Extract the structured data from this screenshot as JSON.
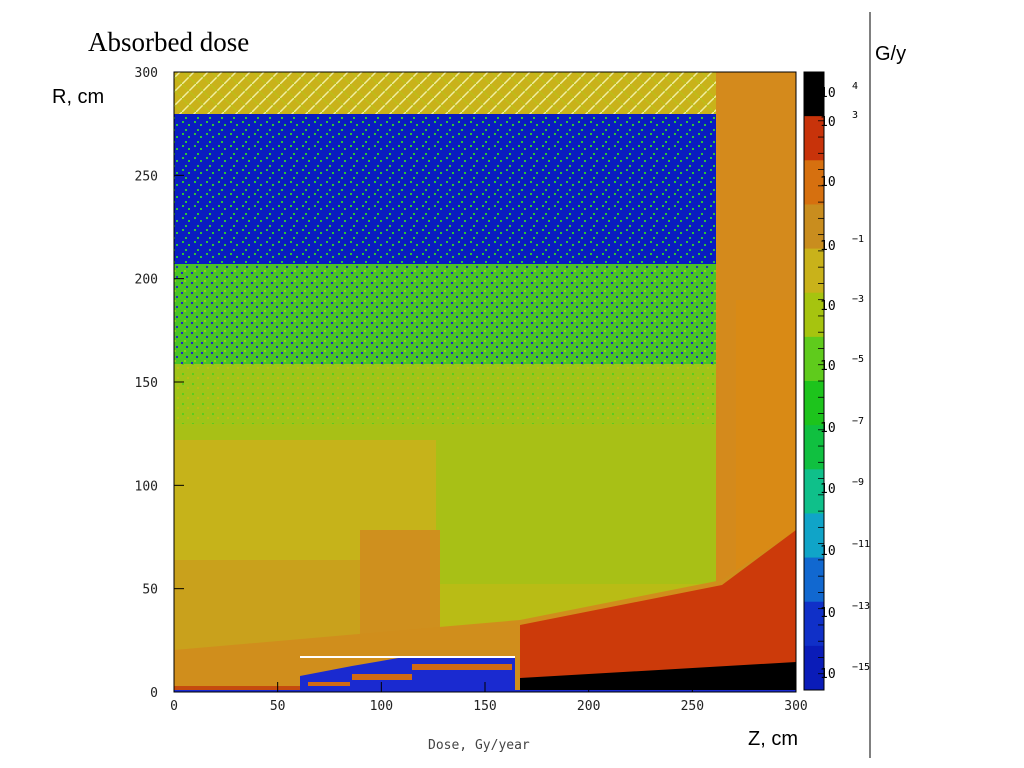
{
  "chart_data": {
    "type": "heatmap",
    "title": "Absorbed dose",
    "xlabel": "Z, cm",
    "ylabel": "R, cm",
    "footer_label": "Dose, Gy/year",
    "colorbar_unit": "G/y",
    "xlim": [
      0,
      300
    ],
    "ylim": [
      0,
      300
    ],
    "x_ticks": [
      "0",
      "50",
      "100",
      "150",
      "200",
      "250",
      "300"
    ],
    "y_ticks": [
      "0",
      "50",
      "100",
      "150",
      "200",
      "250",
      "300"
    ],
    "colorbar_scale": "log",
    "colorbar_ticks": [
      {
        "base": "10",
        "exp": "4"
      },
      {
        "base": "10",
        "exp": "3"
      },
      {
        "base": "10",
        "exp": ""
      },
      {
        "base": "10",
        "exp": "−1"
      },
      {
        "base": "10",
        "exp": "−3"
      },
      {
        "base": "10",
        "exp": "−5"
      },
      {
        "base": "10",
        "exp": "−7"
      },
      {
        "base": "10",
        "exp": "−9"
      },
      {
        "base": "10",
        "exp": "−11"
      },
      {
        "base": "10",
        "exp": "−13"
      },
      {
        "base": "10",
        "exp": "−15"
      }
    ],
    "colorbar_colors": [
      "#000000",
      "#c8330a",
      "#d6700f",
      "#c98d1e",
      "#c9b21a",
      "#a6c40f",
      "#5fcb1c",
      "#1dc41c",
      "#10c040",
      "#0fc08a",
      "#10a4c8",
      "#1168d0",
      "#1030c8",
      "#0a1cb8"
    ],
    "regions": [
      {
        "name": "upper-region",
        "z": [
          0,
          265
        ],
        "r": [
          130,
          280
        ],
        "level": 0.0001,
        "color": "#3cbf28"
      },
      {
        "name": "sparse-top",
        "z": [
          0,
          265
        ],
        "r": [
          200,
          280
        ],
        "level": 1e-12,
        "color": "#0a1cc0"
      },
      {
        "name": "mid-region",
        "z": [
          0,
          265
        ],
        "r": [
          40,
          130
        ],
        "level": 0.1,
        "color": "#b9bc15"
      },
      {
        "name": "inner-region",
        "z": [
          0,
          130
        ],
        "r": [
          30,
          120
        ],
        "level": 1,
        "color": "#c7b21a"
      },
      {
        "name": "outer-shell",
        "z": [
          265,
          300
        ],
        "r": [
          0,
          300
        ],
        "level": 100,
        "color": "#d48a1c"
      },
      {
        "name": "lower-right",
        "z": [
          170,
          300
        ],
        "r": [
          0,
          60
        ],
        "level": 1000,
        "color": "#cc3a0a"
      },
      {
        "name": "beampipe",
        "z": [
          170,
          300
        ],
        "r": [
          0,
          10
        ],
        "level": 10000,
        "color": "#000000"
      },
      {
        "name": "inner-detector",
        "z": [
          60,
          165
        ],
        "r": [
          0,
          18
        ],
        "level": 1e-15,
        "color": "#1a2ad0"
      }
    ]
  }
}
